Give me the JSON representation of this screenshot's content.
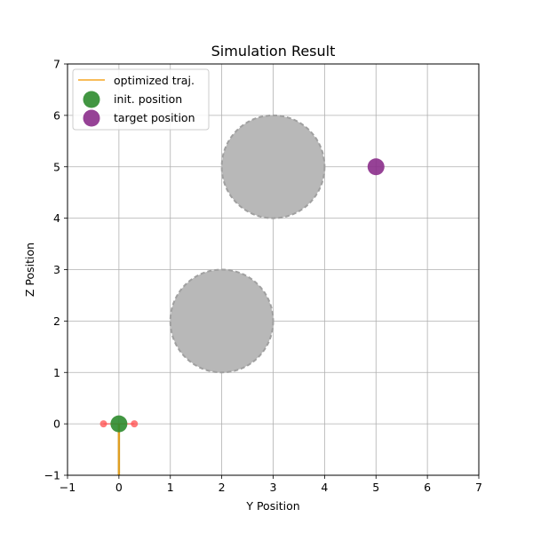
{
  "chart_data": {
    "type": "scatter",
    "title": "Simulation Result",
    "xlabel": "Y Position",
    "ylabel": "Z Position",
    "xlim": [
      -1,
      7
    ],
    "ylim": [
      -1,
      7
    ],
    "xticks": [
      -1,
      0,
      1,
      2,
      3,
      4,
      5,
      6,
      7
    ],
    "yticks": [
      -1,
      0,
      1,
      2,
      3,
      4,
      5,
      6,
      7
    ],
    "xtick_labels": [
      "−1",
      "0",
      "1",
      "2",
      "3",
      "4",
      "5",
      "6",
      "7"
    ],
    "ytick_labels": [
      "−1",
      "0",
      "1",
      "2",
      "3",
      "4",
      "5",
      "6",
      "7"
    ],
    "grid": true,
    "legend_position": "top-left",
    "obstacles": [
      {
        "center": [
          3,
          5
        ],
        "radius": 1.0
      },
      {
        "center": [
          2,
          2
        ],
        "radius": 1.0
      }
    ],
    "trajectory": {
      "name": "optimized traj.",
      "color": "#f5a623",
      "x": [
        0,
        0
      ],
      "y": [
        -1.0,
        0
      ]
    },
    "init_position": {
      "name": "init. position",
      "color": "#2e8b2e",
      "x": 0,
      "y": 0
    },
    "target_position": {
      "name": "target position",
      "color": "#8b2e8b",
      "x": 5,
      "y": 5
    },
    "body_markers": {
      "color": "#ff4d4d",
      "points": [
        [
          -0.3,
          0
        ],
        [
          0.3,
          0
        ]
      ]
    },
    "colors": {
      "obstacle_fill": "#b8b8b8",
      "obstacle_edge": "#a0a0a0",
      "grid": "#b0b0b0",
      "stem": "#b8860b"
    }
  },
  "legend": {
    "items": [
      {
        "label": "optimized traj."
      },
      {
        "label": "init. position"
      },
      {
        "label": "target position"
      }
    ]
  }
}
